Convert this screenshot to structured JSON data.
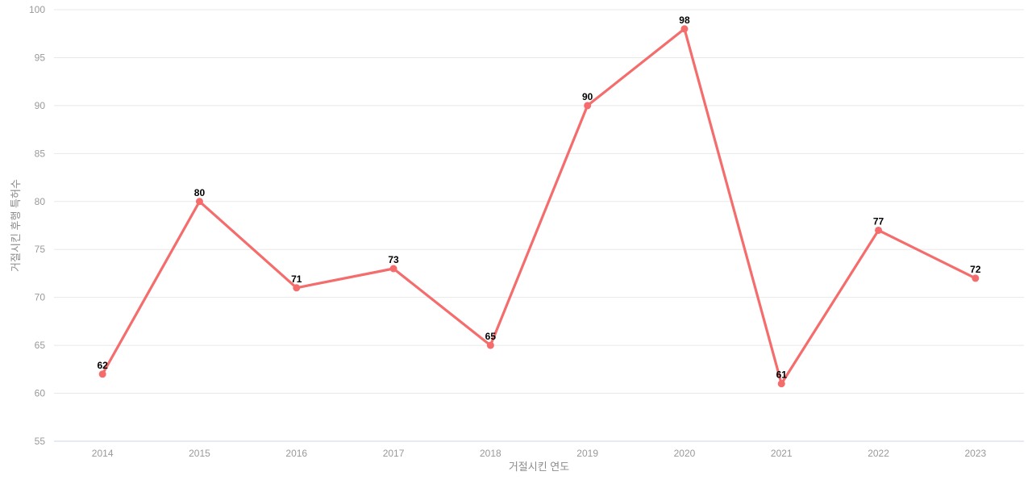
{
  "chart_data": {
    "type": "line",
    "categories": [
      "2014",
      "2015",
      "2016",
      "2017",
      "2018",
      "2019",
      "2020",
      "2021",
      "2022",
      "2023"
    ],
    "values": [
      62,
      80,
      71,
      73,
      65,
      90,
      98,
      61,
      77,
      72
    ],
    "title": "",
    "xlabel": "거절시킨 연도",
    "ylabel": "거절시킨 후행 특허수",
    "ylim": [
      55,
      100
    ],
    "ytick_step": 5,
    "grid": true,
    "legend": "none",
    "show_data_labels": true
  },
  "style": {
    "line_color": "#f56c6c",
    "marker_color": "#f56c6c",
    "grid_color": "#e8e8e8",
    "axis_line_color": "#ccd6eb",
    "tick_text_color": "#999999",
    "axis_title_color": "#8c8c8c",
    "data_label_color": "#000000",
    "background_color": "#ffffff"
  }
}
